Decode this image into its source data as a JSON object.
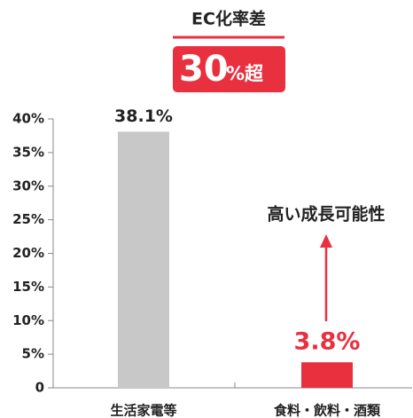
{
  "chart_data": {
    "type": "bar",
    "title": "EC化率差",
    "badge_parts": [
      "30",
      "%超"
    ],
    "annotation": "高い成長可能性",
    "categories": [
      "生活家電等",
      "食料・飲料・酒類"
    ],
    "values": [
      38.1,
      3.8
    ],
    "value_labels": [
      "38.1%",
      "3.8%"
    ],
    "colors": [
      "#c8c8c8",
      "#e8303f"
    ],
    "ylim": [
      0,
      40
    ],
    "yticks": [
      0,
      {
        "value": 5,
        "label": "5%"
      },
      {
        "value": 10,
        "label": "10%"
      },
      {
        "value": 15,
        "label": "15%"
      },
      {
        "value": 20,
        "label": "20%"
      },
      {
        "value": 25,
        "label": "25%"
      },
      {
        "value": 30,
        "label": "30%"
      },
      {
        "value": 35,
        "label": "35%"
      },
      {
        "value": 40,
        "label": "40%"
      }
    ]
  }
}
